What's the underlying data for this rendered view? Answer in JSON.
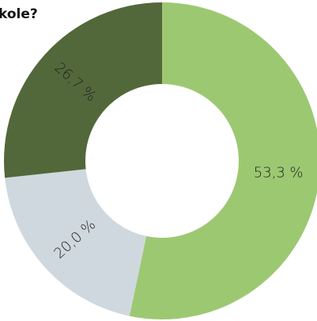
{
  "chart_data": {
    "type": "donut",
    "title": "kole?",
    "categories": [
      null,
      null,
      null
    ],
    "values": [
      53.3,
      20.0,
      26.7
    ],
    "value_labels": [
      "53,3 %",
      "20,0 %",
      "26,7 %"
    ],
    "colors": [
      "#9dc872",
      "#cfd8de",
      "#52683a"
    ]
  }
}
